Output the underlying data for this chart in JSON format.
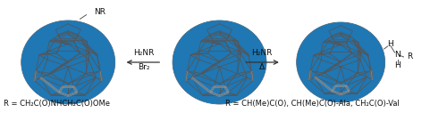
{
  "figsize": [
    5.0,
    1.27
  ],
  "dpi": 100,
  "background": "#ffffff",
  "left_caption": "R = CH₂C(O)NHCH₂C(O)OMe",
  "right_caption": "R = CH(Me)C(O), CH(Me)C(O)-Ala, CH₂C(O)-Val",
  "left_label": "NR",
  "center_left_arrow_label1": "H₂NR",
  "center_left_arrow_label2": "Br₂",
  "center_right_arrow_label1": "H₂NR",
  "center_right_arrow_label2": "Δ",
  "right_h_top": "H",
  "right_nh": "N",
  "right_r": "R",
  "right_h_bot": "H",
  "font_size_caption": 6.0,
  "font_size_label": 6.5,
  "font_size_arrow": 6.5,
  "edge_color": "#555555",
  "hatch_color": "#999999",
  "lw": 0.55,
  "hatch_lw": 0.4
}
